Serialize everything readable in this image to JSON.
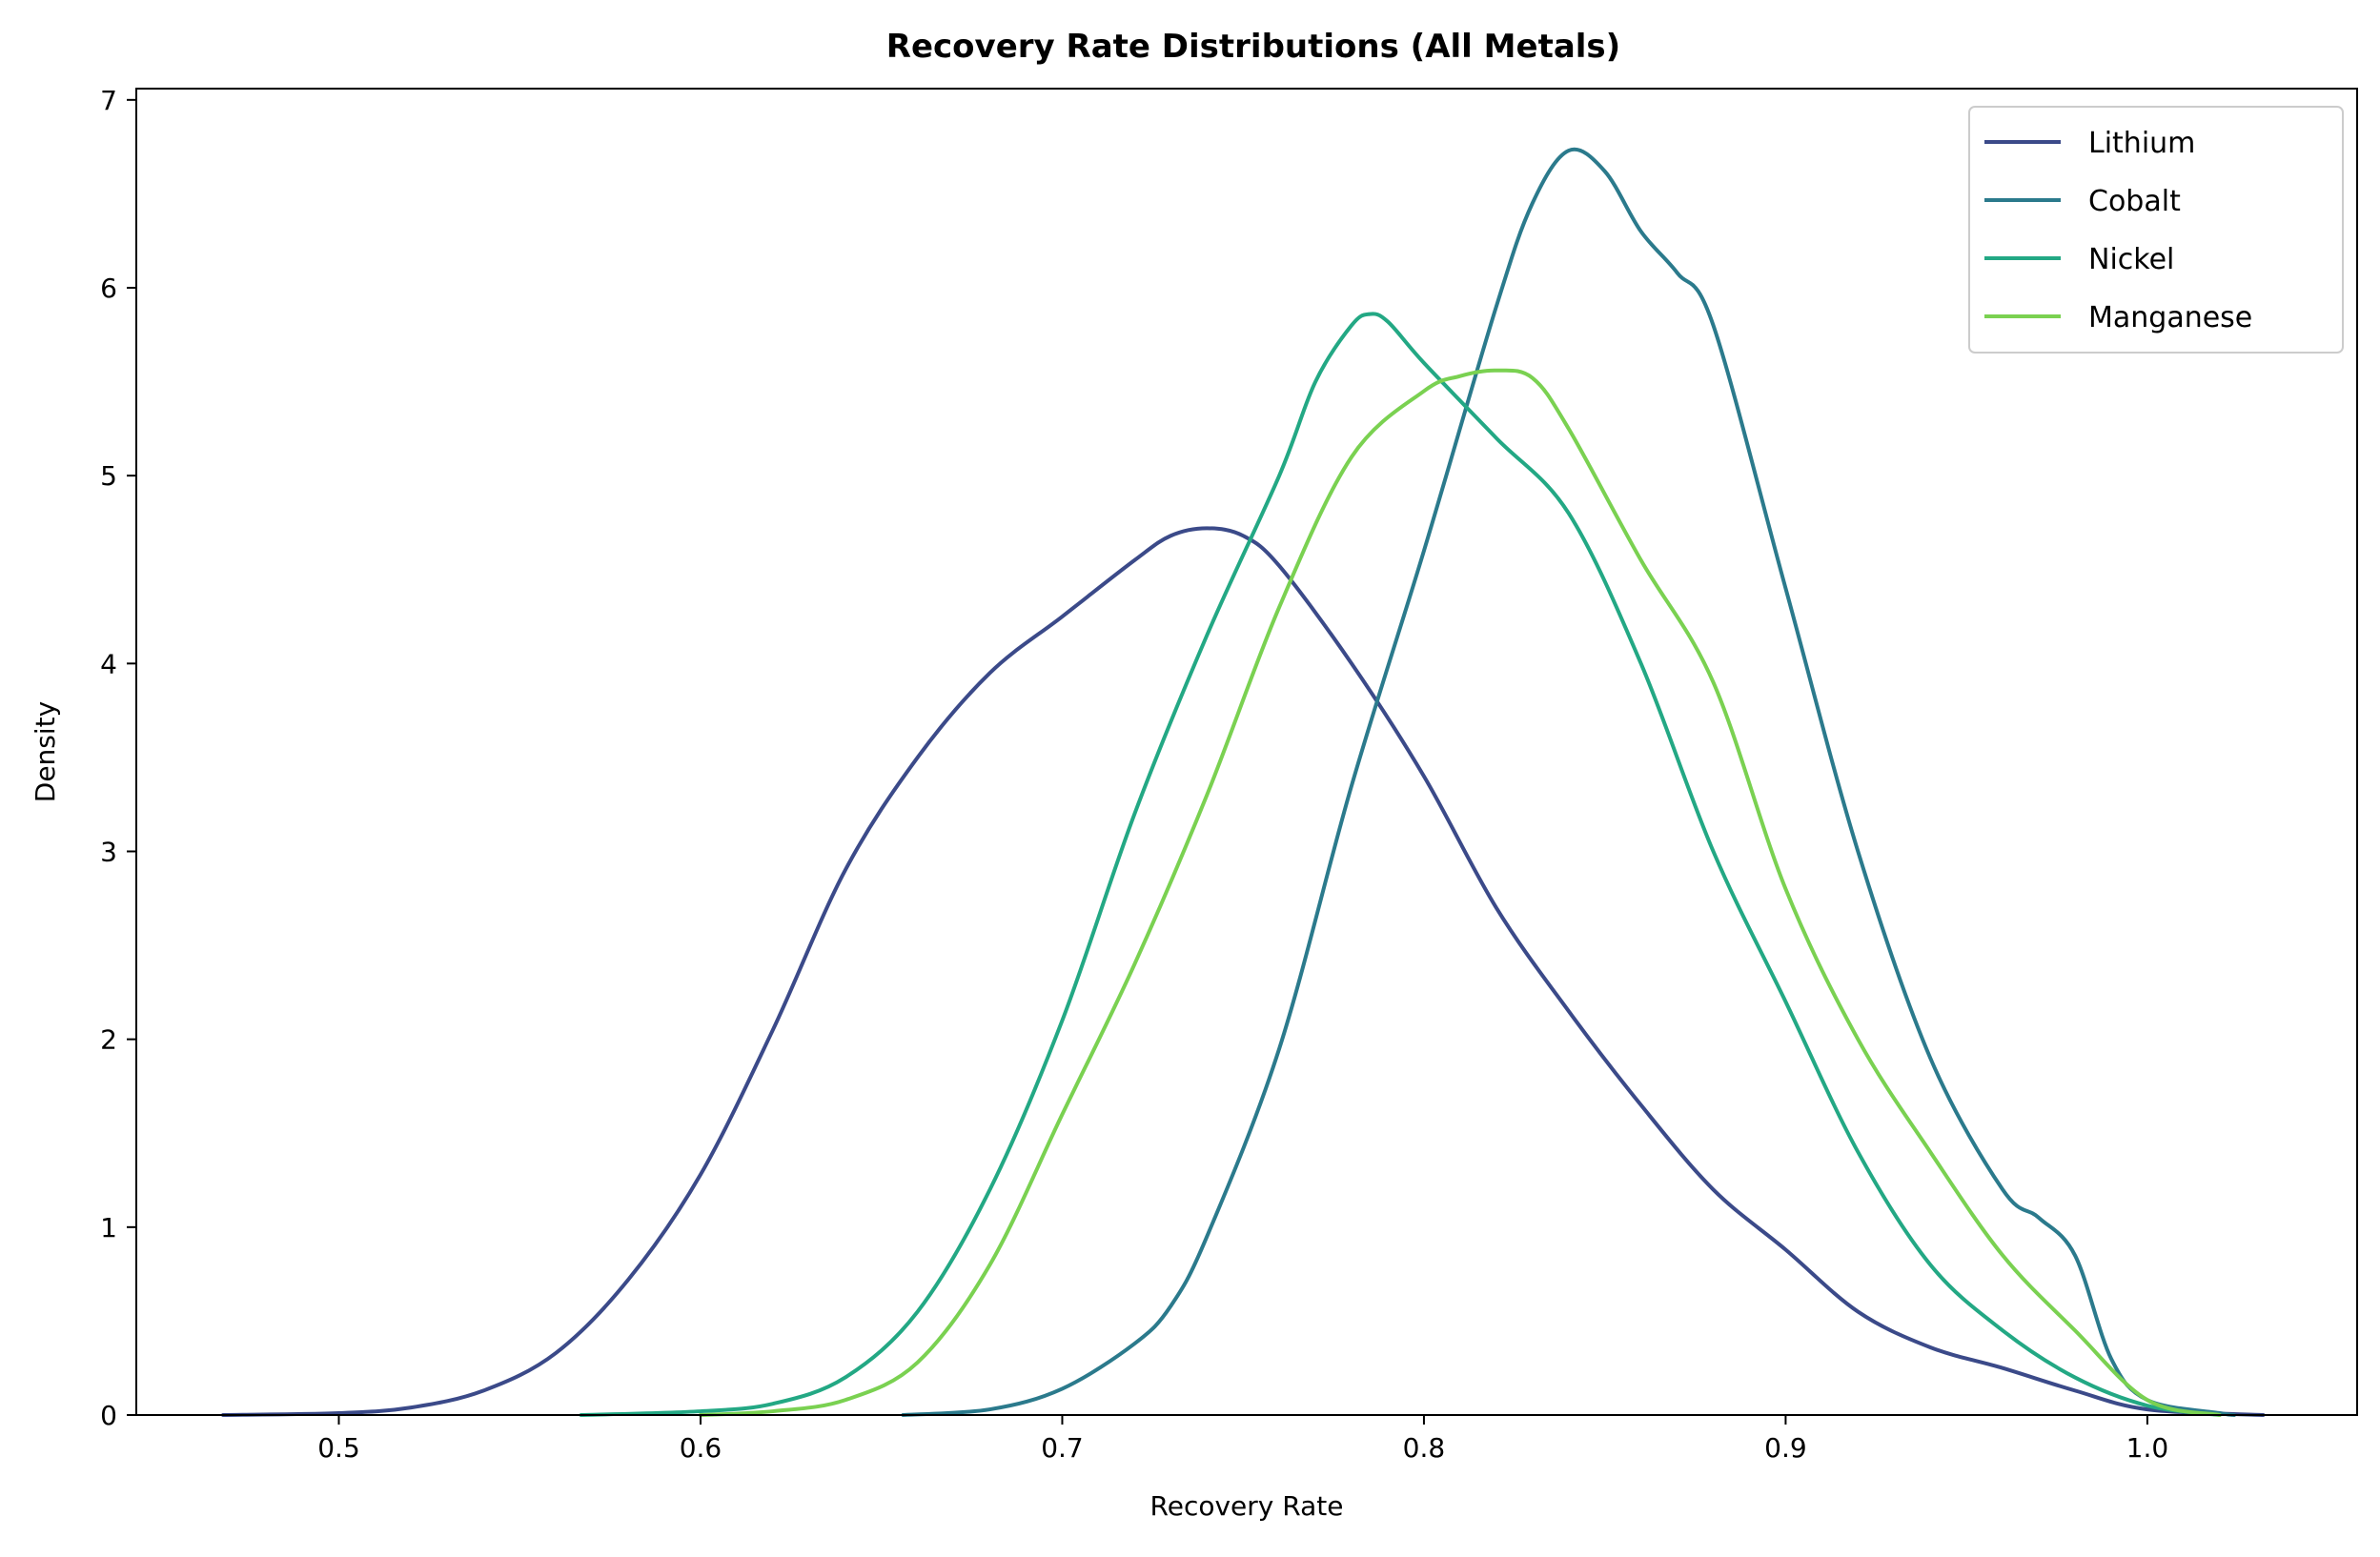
{
  "chart_data": {
    "type": "line",
    "title": "Recovery Rate Distributions (All Metals)",
    "xlabel": "Recovery Rate",
    "ylabel": "Density",
    "xlim": [
      0.444,
      1.058
    ],
    "ylim": [
      0,
      7.06
    ],
    "xticks": [
      0.5,
      0.6,
      0.7,
      0.8,
      0.9,
      1.0
    ],
    "xtick_labels": [
      "0.5",
      "0.6",
      "0.7",
      "0.8",
      "0.9",
      "1.0"
    ],
    "yticks": [
      0,
      1,
      2,
      3,
      4,
      5,
      6,
      7
    ],
    "ytick_labels": [
      "0",
      "1",
      "2",
      "3",
      "4",
      "5",
      "6",
      "7"
    ],
    "grid": false,
    "legend_position": "top-right",
    "series": [
      {
        "name": "Lithium",
        "color": "#3b4a89",
        "points": [
          [
            0.468,
            0
          ],
          [
            0.5,
            0.01
          ],
          [
            0.52,
            0.04
          ],
          [
            0.54,
            0.13
          ],
          [
            0.56,
            0.33
          ],
          [
            0.58,
            0.72
          ],
          [
            0.6,
            1.28
          ],
          [
            0.62,
            2.05
          ],
          [
            0.64,
            2.9
          ],
          [
            0.66,
            3.5
          ],
          [
            0.68,
            3.95
          ],
          [
            0.7,
            4.25
          ],
          [
            0.72,
            4.55
          ],
          [
            0.73,
            4.68
          ],
          [
            0.74,
            4.72
          ],
          [
            0.75,
            4.68
          ],
          [
            0.76,
            4.52
          ],
          [
            0.78,
            4.0
          ],
          [
            0.8,
            3.4
          ],
          [
            0.82,
            2.7
          ],
          [
            0.84,
            2.15
          ],
          [
            0.86,
            1.65
          ],
          [
            0.88,
            1.2
          ],
          [
            0.9,
            0.88
          ],
          [
            0.92,
            0.55
          ],
          [
            0.94,
            0.36
          ],
          [
            0.96,
            0.25
          ],
          [
            0.98,
            0.13
          ],
          [
            1.0,
            0.03
          ],
          [
            1.032,
            0
          ]
        ]
      },
      {
        "name": "Cobalt",
        "color": "#2b7a8c",
        "points": [
          [
            0.656,
            0
          ],
          [
            0.68,
            0.03
          ],
          [
            0.7,
            0.14
          ],
          [
            0.72,
            0.38
          ],
          [
            0.73,
            0.58
          ],
          [
            0.74,
            0.95
          ],
          [
            0.76,
            1.95
          ],
          [
            0.78,
            3.35
          ],
          [
            0.8,
            4.6
          ],
          [
            0.82,
            5.9
          ],
          [
            0.83,
            6.45
          ],
          [
            0.84,
            6.73
          ],
          [
            0.85,
            6.62
          ],
          [
            0.86,
            6.3
          ],
          [
            0.87,
            6.08
          ],
          [
            0.88,
            5.8
          ],
          [
            0.9,
            4.4
          ],
          [
            0.92,
            3.0
          ],
          [
            0.94,
            1.9
          ],
          [
            0.96,
            1.2
          ],
          [
            0.97,
            1.05
          ],
          [
            0.98,
            0.85
          ],
          [
            0.99,
            0.3
          ],
          [
            1.0,
            0.08
          ],
          [
            1.02,
            0.01
          ],
          [
            1.024,
            0
          ]
        ]
      },
      {
        "name": "Nickel",
        "color": "#23a884",
        "points": [
          [
            0.567,
            0
          ],
          [
            0.6,
            0.02
          ],
          [
            0.62,
            0.06
          ],
          [
            0.64,
            0.2
          ],
          [
            0.66,
            0.55
          ],
          [
            0.68,
            1.2
          ],
          [
            0.7,
            2.1
          ],
          [
            0.72,
            3.2
          ],
          [
            0.74,
            4.15
          ],
          [
            0.76,
            5.0
          ],
          [
            0.77,
            5.5
          ],
          [
            0.78,
            5.8
          ],
          [
            0.785,
            5.86
          ],
          [
            0.79,
            5.82
          ],
          [
            0.8,
            5.6
          ],
          [
            0.82,
            5.2
          ],
          [
            0.84,
            4.8
          ],
          [
            0.86,
            4.0
          ],
          [
            0.88,
            3.0
          ],
          [
            0.9,
            2.2
          ],
          [
            0.92,
            1.4
          ],
          [
            0.94,
            0.8
          ],
          [
            0.96,
            0.45
          ],
          [
            0.98,
            0.2
          ],
          [
            1.0,
            0.05
          ],
          [
            1.02,
            0
          ]
        ]
      },
      {
        "name": "Manganese",
        "color": "#7ad151",
        "points": [
          [
            0.6,
            0
          ],
          [
            0.62,
            0.02
          ],
          [
            0.64,
            0.08
          ],
          [
            0.66,
            0.28
          ],
          [
            0.68,
            0.8
          ],
          [
            0.7,
            1.6
          ],
          [
            0.72,
            2.4
          ],
          [
            0.74,
            3.3
          ],
          [
            0.76,
            4.3
          ],
          [
            0.78,
            5.1
          ],
          [
            0.8,
            5.45
          ],
          [
            0.81,
            5.53
          ],
          [
            0.82,
            5.56
          ],
          [
            0.83,
            5.52
          ],
          [
            0.84,
            5.25
          ],
          [
            0.86,
            4.55
          ],
          [
            0.88,
            3.9
          ],
          [
            0.9,
            2.8
          ],
          [
            0.92,
            2.0
          ],
          [
            0.94,
            1.4
          ],
          [
            0.96,
            0.85
          ],
          [
            0.98,
            0.45
          ],
          [
            1.0,
            0.08
          ],
          [
            1.02,
            0
          ]
        ]
      }
    ]
  }
}
